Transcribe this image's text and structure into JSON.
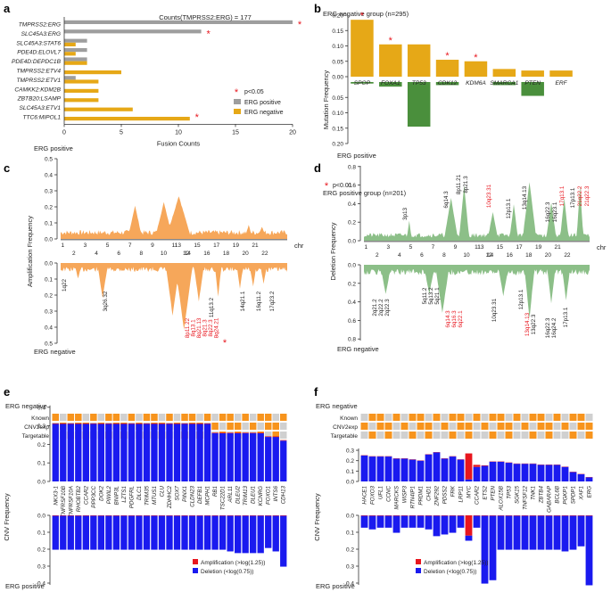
{
  "panels": {
    "a": {
      "letter": "a"
    },
    "b": {
      "letter": "b"
    },
    "c": {
      "letter": "c"
    },
    "d": {
      "letter": "d"
    },
    "e": {
      "letter": "e"
    },
    "f": {
      "letter": "f"
    }
  },
  "colors": {
    "grey": "#9e9e9e",
    "gold": "#e6a817",
    "orange": "#f6a75a",
    "green": "#8cbf88",
    "darkgreen": "#4a8f3c",
    "blue": "#1a1aef",
    "red": "#e8161e",
    "star": "#e8161e",
    "heatOrange": "#f7941d",
    "heatGrey": "#d0d0d0"
  },
  "chart_data": [
    {
      "id": "a",
      "type": "bar",
      "orientation": "horizontal",
      "categories": [
        "TMPRSS2:ERG",
        "SLC45A3:ERG",
        "SLC45A3:STAT6",
        "PDE4D:ELOVL7",
        "PDE4D:DEPDC1B",
        "TMPRSS2:ETV4",
        "TMPRSS2:ETV1",
        "CAMKK2:KDM2B",
        "ZBTB20:LSAMP",
        "SLC45A3:ETV1",
        "TTC6:MIPOL1"
      ],
      "series": [
        {
          "name": "ERG positive",
          "values": [
            20,
            12,
            2,
            2,
            2,
            0,
            1,
            0,
            0,
            0,
            0
          ]
        },
        {
          "name": "ERG negative",
          "values": [
            0,
            0,
            1,
            1,
            2,
            5,
            3,
            3,
            3,
            6,
            11
          ]
        }
      ],
      "starred": [
        0,
        1,
        10
      ],
      "annotation": "Counts(TMPRSS2:ERG) = 177",
      "xlabel": "Fusion Counts",
      "xlim": [
        0,
        20
      ],
      "xticks": [
        0,
        5,
        10,
        15,
        20
      ],
      "legend": {
        "sig": "p<0.05",
        "pos": "ERG positive",
        "neg": "ERG negative"
      }
    },
    {
      "id": "b",
      "type": "bar",
      "categories": [
        "SPOP",
        "FOXA1",
        "TP53",
        "CDK12",
        "KDM6A",
        "SMARCA1",
        "PTEN",
        "ERF"
      ],
      "series": [
        {
          "name": "ERG negative group (n=295)",
          "values": [
            0.185,
            0.105,
            0.105,
            0.055,
            0.05,
            0.025,
            0.02,
            0.02
          ]
        },
        {
          "name": "ERG positive group (n=201)",
          "values": [
            0.005,
            0.015,
            0.145,
            0.01,
            0.0,
            0.01,
            0.045,
            0.0
          ]
        }
      ],
      "starred": [
        0,
        1,
        3,
        4
      ],
      "title_top": "ERG negative group (n=295)",
      "title_bottom": "ERG positive group (n=201)",
      "ylabel": "Mutation Frequency",
      "yticks_top": [
        "0.20",
        "0.15",
        "0.10",
        "0.05",
        "0.00"
      ],
      "yticks_bottom": [
        "0.05",
        "0.10",
        "0.15",
        "0.20"
      ],
      "sig": "p<0.01"
    },
    {
      "id": "c",
      "type": "area",
      "ylabel": "Amplification Frequency",
      "label_top": "ERG positive",
      "label_bottom": "ERG negative",
      "chr_label": "chr",
      "chr_top": [
        "1",
        "3",
        "5",
        "7",
        "9",
        "11",
        "13",
        "15",
        "17",
        "19",
        "21"
      ],
      "chr_bottom": [
        "2",
        "4",
        "6",
        "8",
        "10",
        "12",
        "14",
        "16",
        "18",
        "20",
        "22"
      ],
      "yticks_top": [
        "0.5",
        "0.4",
        "0.3",
        "0.2",
        "0.1",
        "0.0"
      ],
      "yticks_bottom": [
        "0.0",
        "0.1",
        "0.2",
        "0.3",
        "0.4",
        "0.5"
      ],
      "peak_labels_black": [
        "1q22",
        "3q26.32",
        "11q13.2",
        "14q21.1",
        "16q11.2",
        "17q23.2"
      ],
      "peak_labels_red": [
        "8p11.22",
        "8q13.1",
        "8q21.13",
        "8q21.3",
        "8q22.3",
        "8q24.21"
      ],
      "ylim": [
        0,
        0.5
      ]
    },
    {
      "id": "d",
      "type": "area",
      "ylabel": "Deletion Frequency",
      "label_top": "ERG positive",
      "label_bottom": "ERG negative",
      "chr_label": "chr",
      "chr_top": [
        "1",
        "3",
        "5",
        "7",
        "9",
        "11",
        "13",
        "15",
        "17",
        "19",
        "21"
      ],
      "chr_bottom": [
        "2",
        "4",
        "6",
        "8",
        "10",
        "12",
        "14",
        "16",
        "18",
        "20",
        "22"
      ],
      "yticks_top": [
        "0.8",
        "0.6",
        "0.4",
        "0.2",
        "0.0"
      ],
      "yticks_bottom": [
        "0.0",
        "0.2",
        "0.4",
        "0.6",
        "0.8"
      ],
      "top_labels_black": [
        "3p13",
        "6q14.3",
        "8p11.21",
        "8p21.3",
        "12p13.1",
        "13q14.13",
        "16q22.3",
        "16q23.1",
        "17p13.1"
      ],
      "top_labels_red": [
        "10q23.31",
        "17q13.1",
        "21q22.2",
        "21q22.3"
      ],
      "bottom_labels_black": [
        "2q21.2",
        "2q22.2",
        "2q22.3",
        "5q11.2",
        "5q13.2",
        "5q21.1",
        "10q23.31",
        "12p13.1",
        "13q22.3",
        "16q22.3",
        "16q24.2",
        "17p13.1"
      ],
      "bottom_labels_red": [
        "6q14.3",
        "6q16.3",
        "6q22.1",
        "13q14.13"
      ],
      "ylim": [
        0,
        0.8
      ]
    },
    {
      "id": "e",
      "type": "bar",
      "label_top": "ERG negative",
      "label_bottom": "ERG positive",
      "heat_rows": [
        "Known",
        "CNV2exp",
        "Targetable"
      ],
      "ylabel": "CNV Frequency",
      "genes": [
        "NKX3-1",
        "TNFRSF10B",
        "TNFRSF10A",
        "RHOBTB2",
        "CCAR2",
        "PPP3CC",
        "DOK2",
        "PIWIL2",
        "BNIP3L",
        "LZTS1",
        "PDGFRL",
        "DLC1",
        "TRIM35",
        "MTUS1",
        "CLU",
        "ZDHHC2",
        "SOX7",
        "PINX1",
        "CLDN23",
        "DEFB1",
        "MCPH1",
        "RB1",
        "TSC22D1",
        "ARL11",
        "DLEU2",
        "TRIM13",
        "DLEU1",
        "KCNRG",
        "FOXO1",
        "INTS6",
        "CDH13"
      ],
      "deletion_top": [
        0.31,
        0.31,
        0.31,
        0.31,
        0.31,
        0.31,
        0.31,
        0.31,
        0.31,
        0.31,
        0.31,
        0.31,
        0.31,
        0.31,
        0.31,
        0.31,
        0.31,
        0.31,
        0.31,
        0.31,
        0.31,
        0.26,
        0.26,
        0.26,
        0.26,
        0.26,
        0.26,
        0.26,
        0.24,
        0.24,
        0.22
      ],
      "deletion_bottom": [
        0.2,
        0.2,
        0.2,
        0.2,
        0.2,
        0.2,
        0.2,
        0.2,
        0.2,
        0.2,
        0.2,
        0.2,
        0.2,
        0.2,
        0.2,
        0.2,
        0.2,
        0.2,
        0.2,
        0.2,
        0.2,
        0.2,
        0.2,
        0.21,
        0.22,
        0.22,
        0.22,
        0.22,
        0.19,
        0.21,
        0.3
      ],
      "amplification_top": [
        0.003,
        0.003,
        0.003,
        0.003,
        0.003,
        0.003,
        0.003,
        0.003,
        0.003,
        0.003,
        0.003,
        0.003,
        0.003,
        0.003,
        0.003,
        0.003,
        0.003,
        0.003,
        0.003,
        0.003,
        0.003,
        0.003,
        0.003,
        0.003,
        0.003,
        0.003,
        0.003,
        0.003,
        0.003,
        0.003,
        0.003
      ],
      "amplification_bottom": [
        0.003,
        0.003,
        0.003,
        0.003,
        0.003,
        0.003,
        0.003,
        0.003,
        0.003,
        0.003,
        0.003,
        0.003,
        0.003,
        0.003,
        0.003,
        0.003,
        0.003,
        0.003,
        0.003,
        0.003,
        0.003,
        0.003,
        0.003,
        0.003,
        0.003,
        0.003,
        0.003,
        0.003,
        0.003,
        0.003,
        0.003
      ],
      "yticks_top": [
        "0.4",
        "0.3",
        "0.2",
        "0.1",
        "0.0"
      ],
      "yticks_bottom": [
        "0.0",
        "0.1",
        "0.2",
        "0.3",
        "0.4"
      ],
      "ylim": [
        0,
        0.4
      ],
      "legend": {
        "amp": "Amplification (>log(1.25))",
        "del": "Deletion (<log(0.75))"
      }
    },
    {
      "id": "f",
      "type": "bar",
      "label_top": "ERG negative",
      "label_bottom": "ERG positive",
      "heat_rows": [
        "Known",
        "CNV2exp",
        "Targetable"
      ],
      "ylabel": "CNV Frequency",
      "genes": [
        "HACE1",
        "FOXO3",
        "UFL1",
        "CCNC",
        "MARCKS",
        "WISP3",
        "RTN4IP1",
        "PRDM1",
        "CHD1",
        "ZNF292",
        "PDSS2",
        "FRK",
        "LRP11",
        "MYC",
        "CCAR2",
        "ETS2",
        "PTEN",
        "ALOX15B",
        "TP53",
        "SGK15",
        "TNFSF12",
        "TNK1",
        "ZBTB4",
        "GABARAP",
        "BCL6B",
        "PGKP1",
        "SPDP1",
        "XAF1",
        "ERG"
      ],
      "deletion_top": [
        0.25,
        0.24,
        0.24,
        0.24,
        0.22,
        0.22,
        0.21,
        0.2,
        0.26,
        0.28,
        0.22,
        0.24,
        0.21,
        0.02,
        0.14,
        0.15,
        0.19,
        0.19,
        0.18,
        0.17,
        0.17,
        0.17,
        0.16,
        0.16,
        0.16,
        0.14,
        0.09,
        0.07,
        0.04
      ],
      "deletion_bottom": [
        0.07,
        0.08,
        0.07,
        0.07,
        0.1,
        0.07,
        0.07,
        0.07,
        0.08,
        0.12,
        0.11,
        0.1,
        0.07,
        0.03,
        0.07,
        0.4,
        0.38,
        0.2,
        0.2,
        0.2,
        0.2,
        0.2,
        0.2,
        0.2,
        0.2,
        0.21,
        0.2,
        0.18,
        0.41
      ],
      "amplification_top": [
        0.003,
        0.003,
        0.003,
        0.003,
        0.003,
        0.003,
        0.003,
        0.003,
        0.003,
        0.003,
        0.003,
        0.003,
        0.003,
        0.25,
        0.02,
        0.005,
        0.003,
        0.003,
        0.003,
        0.003,
        0.003,
        0.003,
        0.003,
        0.003,
        0.003,
        0.003,
        0.003,
        0.003,
        0.003
      ],
      "amplification_bottom": [
        0.003,
        0.003,
        0.003,
        0.003,
        0.003,
        0.003,
        0.003,
        0.003,
        0.003,
        0.003,
        0.003,
        0.003,
        0.003,
        0.12,
        0.003,
        0.003,
        0.003,
        0.003,
        0.003,
        0.003,
        0.003,
        0.003,
        0.003,
        0.003,
        0.003,
        0.003,
        0.003,
        0.003,
        0.003
      ],
      "yticks_top": [
        "0.3",
        "0.2",
        "0.1",
        "0.0"
      ],
      "yticks_bottom": [
        "0.0",
        "0.1",
        "0.2",
        "0.3",
        "0.4"
      ],
      "ylim": [
        0,
        0.3
      ],
      "legend": {
        "amp": "Amplification (>log(1.25))",
        "del": "Deletion (<log(0.75))"
      }
    }
  ]
}
